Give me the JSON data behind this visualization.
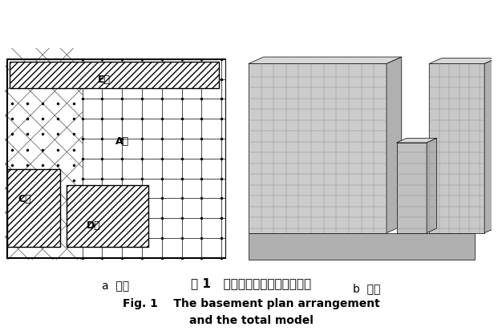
{
  "fig_width": 6.26,
  "fig_height": 4.14,
  "dpi": 100,
  "bg_color": "#ffffff",
  "caption_cn": "图 1   地下室平面布置及整体模型",
  "caption_en1": "Fig. 1    The basement plan arrangement",
  "caption_en2": "and the total model",
  "label_a": "a  平面",
  "label_b": "b  模型",
  "label_E": "E栋",
  "label_A": "A点",
  "label_C": "C栋",
  "label_D": "D栋",
  "grid_color": "#000000",
  "hatch_color": "#000000",
  "caption_cn_fontsize": 11,
  "caption_en_fontsize": 10,
  "label_fontsize": 9
}
